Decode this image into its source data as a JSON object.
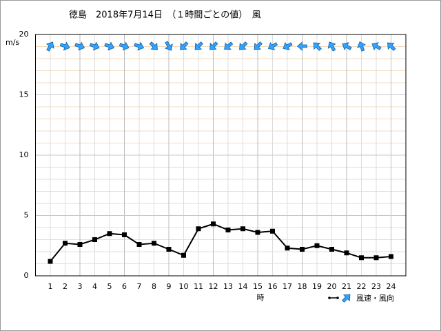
{
  "chart_data": {
    "type": "line",
    "title": "徳島　2018年7月14日　（１時間ごとの値）　風",
    "x_label": "時",
    "y_label": "m/s",
    "legend": "風速・風向",
    "x": [
      1,
      2,
      3,
      4,
      5,
      6,
      7,
      8,
      9,
      10,
      11,
      12,
      13,
      14,
      15,
      16,
      17,
      18,
      19,
      20,
      21,
      22,
      23,
      24
    ],
    "series": [
      {
        "color": "#000000",
        "arrow_color": "#33a3ff",
        "values": [
          1.2,
          2.7,
          2.6,
          3.0,
          3.5,
          3.4,
          2.6,
          2.7,
          2.2,
          1.7,
          3.9,
          4.3,
          3.8,
          3.9,
          3.6,
          3.7,
          2.3,
          2.2,
          2.5,
          2.2,
          1.9,
          1.5,
          1.5,
          1.6
        ],
        "direction": [
          30,
          110,
          110,
          110,
          110,
          110,
          110,
          135,
          150,
          225,
          225,
          225,
          230,
          225,
          225,
          240,
          240,
          270,
          315,
          330,
          300,
          340,
          300,
          315
        ]
      }
    ],
    "xlim": [
      0,
      25
    ],
    "xticks": [
      1,
      2,
      3,
      4,
      5,
      6,
      7,
      8,
      9,
      10,
      11,
      12,
      13,
      14,
      15,
      16,
      17,
      18,
      19,
      20,
      21,
      22,
      23,
      24
    ],
    "ylim": [
      0,
      20
    ],
    "yticks": [
      0,
      5,
      10,
      15,
      20
    ],
    "minor_yticks": [
      1,
      2,
      3,
      4,
      6,
      7,
      8,
      9,
      11,
      12,
      13,
      14,
      16,
      17,
      18,
      19
    ],
    "grid": true
  }
}
